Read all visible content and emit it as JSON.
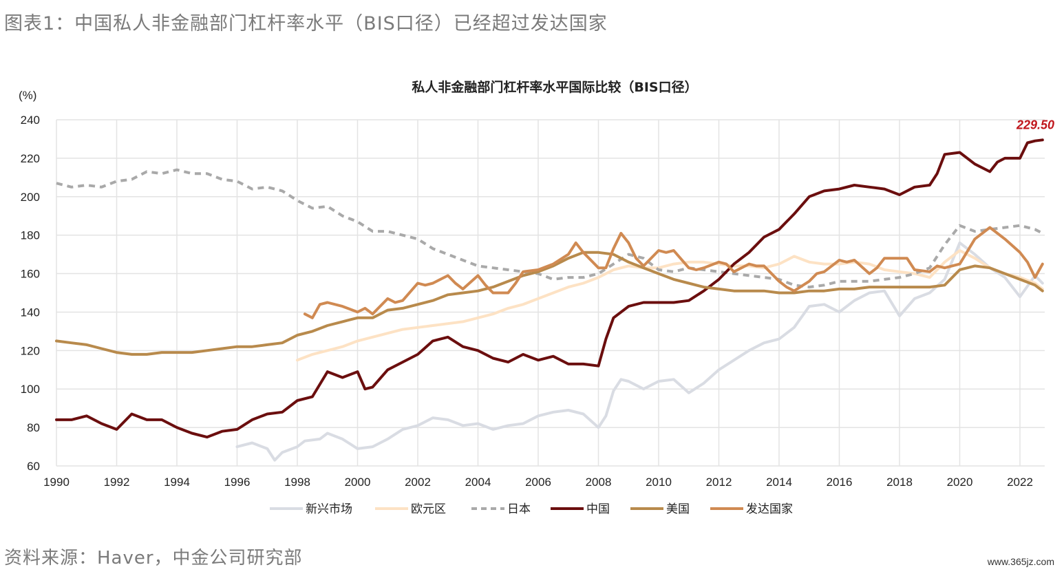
{
  "figure_title": "图表1：中国私人非金融部门杠杆率水平（BIS口径）已经超过发达国家",
  "source": "资料来源：Haver，中金公司研究部",
  "watermark": "www.365jz.com",
  "chart_data": {
    "type": "line",
    "title": "私人非金融部门杠杆率水平国际比较（BIS口径）",
    "ylabel": "(%)",
    "xlabel": "",
    "ylim": [
      60,
      240
    ],
    "xlim": [
      1990,
      2022.8
    ],
    "grid": true,
    "yticks": [
      60,
      80,
      100,
      120,
      140,
      160,
      180,
      200,
      220,
      240
    ],
    "xticks": [
      1990,
      1992,
      1994,
      1996,
      1998,
      2000,
      2002,
      2004,
      2006,
      2008,
      2010,
      2012,
      2014,
      2016,
      2018,
      2020,
      2022
    ],
    "legend_position": "bottom",
    "annotation": {
      "text": "229.50",
      "x": 2022.75,
      "y": 229.5,
      "color": "#c0161c"
    },
    "series": [
      {
        "name": "新兴市场",
        "color": "#d9dce3",
        "dash": false,
        "x": [
          1996,
          1996.5,
          1997,
          1997.25,
          1997.5,
          1998,
          1998.25,
          1998.75,
          1999,
          1999.5,
          2000,
          2000.5,
          2001,
          2001.5,
          2002,
          2002.5,
          2003,
          2003.5,
          2004,
          2004.5,
          2005,
          2005.5,
          2006,
          2006.5,
          2007,
          2007.5,
          2008,
          2008.25,
          2008.5,
          2008.75,
          2009,
          2009.5,
          2010,
          2010.5,
          2011,
          2011.5,
          2012,
          2012.5,
          2013,
          2013.5,
          2014,
          2014.5,
          2015,
          2015.5,
          2016,
          2016.5,
          2017,
          2017.5,
          2018,
          2018.5,
          2019,
          2019.5,
          2020,
          2020.5,
          2021,
          2021.5,
          2022,
          2022.5,
          2022.75
        ],
        "values": [
          70,
          72,
          69,
          63,
          67,
          70,
          73,
          74,
          77,
          74,
          69,
          70,
          74,
          79,
          81,
          85,
          84,
          81,
          82,
          79,
          81,
          82,
          86,
          88,
          89,
          87,
          80,
          86,
          99,
          105,
          104,
          100,
          104,
          105,
          98,
          103,
          110,
          115,
          120,
          124,
          126,
          132,
          143,
          144,
          140,
          146,
          150,
          151,
          138,
          147,
          150,
          157,
          176,
          170,
          163,
          158,
          148,
          159,
          155
        ]
      },
      {
        "name": "欧元区",
        "color": "#fde2c4",
        "dash": false,
        "x": [
          1998,
          1998.5,
          1999,
          1999.5,
          2000,
          2000.5,
          2001,
          2001.5,
          2002,
          2002.5,
          2003,
          2003.5,
          2004,
          2004.5,
          2005,
          2005.5,
          2006,
          2006.5,
          2007,
          2007.5,
          2008,
          2008.5,
          2009,
          2009.5,
          2010,
          2010.5,
          2011,
          2011.5,
          2012,
          2012.5,
          2013,
          2013.5,
          2014,
          2014.5,
          2015,
          2015.5,
          2016,
          2016.5,
          2017,
          2017.5,
          2018,
          2018.5,
          2019,
          2019.5,
          2020,
          2020.5,
          2021,
          2021.5,
          2022,
          2022.5,
          2022.75
        ],
        "values": [
          115,
          118,
          120,
          122,
          125,
          127,
          129,
          131,
          132,
          133,
          134,
          135,
          137,
          139,
          142,
          144,
          147,
          150,
          153,
          155,
          158,
          162,
          164,
          163,
          163,
          165,
          166,
          166,
          165,
          164,
          164,
          163,
          165,
          169,
          166,
          165,
          165,
          166,
          165,
          162,
          161,
          160,
          158,
          166,
          172,
          168,
          163,
          160,
          158,
          155,
          152
        ]
      },
      {
        "name": "日本",
        "color": "#a9a9a9",
        "dash": true,
        "x": [
          1990,
          1990.5,
          1991,
          1991.5,
          1992,
          1992.5,
          1993,
          1993.5,
          1994,
          1994.5,
          1995,
          1995.5,
          1996,
          1996.5,
          1997,
          1997.5,
          1998,
          1998.5,
          1999,
          1999.5,
          2000,
          2000.5,
          2001,
          2001.5,
          2002,
          2002.5,
          2003,
          2003.5,
          2004,
          2004.5,
          2005,
          2005.5,
          2006,
          2006.5,
          2007,
          2007.5,
          2008,
          2008.5,
          2009,
          2009.5,
          2010,
          2010.5,
          2011,
          2011.5,
          2012,
          2012.5,
          2013,
          2013.5,
          2014,
          2014.5,
          2015,
          2015.5,
          2016,
          2016.5,
          2017,
          2017.5,
          2018,
          2018.5,
          2019,
          2019.5,
          2020,
          2020.5,
          2021,
          2021.5,
          2022,
          2022.5,
          2022.75
        ],
        "values": [
          207,
          205,
          206,
          205,
          208,
          209,
          213,
          212,
          214,
          212,
          212,
          209,
          208,
          204,
          205,
          203,
          198,
          194,
          195,
          190,
          187,
          182,
          182,
          180,
          178,
          173,
          170,
          167,
          164,
          163,
          162,
          161,
          160,
          157,
          158,
          158,
          160,
          165,
          170,
          168,
          162,
          161,
          163,
          162,
          161,
          160,
          159,
          158,
          157,
          154,
          153,
          154,
          156,
          156,
          156,
          157,
          158,
          160,
          163,
          175,
          185,
          182,
          183,
          184,
          185,
          183,
          181
        ]
      },
      {
        "name": "中国",
        "color": "#6b0e0e",
        "dash": false,
        "x": [
          1990,
          1990.5,
          1991,
          1991.5,
          1992,
          1992.5,
          1993,
          1993.5,
          1994,
          1994.5,
          1995,
          1995.5,
          1996,
          1996.5,
          1997,
          1997.5,
          1998,
          1998.5,
          1999,
          1999.5,
          2000,
          2000.25,
          2000.5,
          2001,
          2001.5,
          2002,
          2002.5,
          2003,
          2003.5,
          2004,
          2004.5,
          2005,
          2005.5,
          2006,
          2006.5,
          2007,
          2007.5,
          2008,
          2008.25,
          2008.5,
          2009,
          2009.5,
          2010,
          2010.5,
          2011,
          2011.5,
          2012,
          2012.5,
          2013,
          2013.5,
          2014,
          2014.5,
          2015,
          2015.5,
          2016,
          2016.5,
          2017,
          2017.5,
          2018,
          2018.5,
          2019,
          2019.25,
          2019.5,
          2020,
          2020.5,
          2021,
          2021.25,
          2021.5,
          2022,
          2022.25,
          2022.5,
          2022.75
        ],
        "values": [
          84,
          84,
          86,
          82,
          79,
          87,
          84,
          84,
          80,
          77,
          75,
          78,
          79,
          84,
          87,
          88,
          94,
          96,
          109,
          106,
          109,
          100,
          101,
          110,
          114,
          118,
          125,
          127,
          122,
          120,
          116,
          114,
          118,
          115,
          117,
          113,
          113,
          112,
          126,
          137,
          143,
          145,
          145,
          145,
          146,
          151,
          157,
          165,
          171,
          179,
          183,
          191,
          200,
          203,
          204,
          206,
          205,
          204,
          201,
          205,
          206,
          212,
          222,
          223,
          217,
          213,
          218,
          220,
          220,
          228,
          229,
          229.5
        ]
      },
      {
        "name": "美国",
        "color": "#b88a4c",
        "dash": false,
        "x": [
          1990,
          1990.5,
          1991,
          1991.5,
          1992,
          1992.5,
          1993,
          1993.5,
          1994,
          1994.5,
          1995,
          1995.5,
          1996,
          1996.5,
          1997,
          1997.5,
          1998,
          1998.5,
          1999,
          1999.5,
          2000,
          2000.5,
          2001,
          2001.5,
          2002,
          2002.5,
          2003,
          2003.5,
          2004,
          2004.5,
          2005,
          2005.5,
          2006,
          2006.5,
          2007,
          2007.5,
          2008,
          2008.5,
          2009,
          2009.5,
          2010,
          2010.5,
          2011,
          2011.5,
          2012,
          2012.5,
          2013,
          2013.5,
          2014,
          2014.5,
          2015,
          2015.5,
          2016,
          2016.5,
          2017,
          2017.5,
          2018,
          2018.5,
          2019,
          2019.5,
          2020,
          2020.5,
          2021,
          2021.5,
          2022,
          2022.5,
          2022.75
        ],
        "values": [
          125,
          124,
          123,
          121,
          119,
          118,
          118,
          119,
          119,
          119,
          120,
          121,
          122,
          122,
          123,
          124,
          128,
          130,
          133,
          135,
          137,
          137,
          141,
          142,
          144,
          146,
          149,
          150,
          151,
          153,
          156,
          159,
          161,
          164,
          168,
          171,
          171,
          170,
          166,
          163,
          160,
          157,
          155,
          153,
          152,
          151,
          151,
          151,
          150,
          150,
          151,
          151,
          152,
          152,
          153,
          153,
          153,
          153,
          153,
          154,
          162,
          164,
          163,
          160,
          157,
          154,
          151
        ]
      },
      {
        "name": "发达国家",
        "color": "#d08a52",
        "dash": false,
        "x": [
          1998.25,
          1998.5,
          1998.75,
          1999,
          1999.5,
          2000,
          2000.25,
          2000.5,
          2001,
          2001.25,
          2001.5,
          2002,
          2002.25,
          2002.5,
          2003,
          2003.25,
          2003.5,
          2004,
          2004.25,
          2004.5,
          2005,
          2005.25,
          2005.5,
          2006,
          2006.5,
          2007,
          2007.25,
          2007.5,
          2008,
          2008.25,
          2008.5,
          2008.75,
          2009,
          2009.25,
          2009.5,
          2010,
          2010.25,
          2010.5,
          2011,
          2011.25,
          2011.5,
          2012,
          2012.25,
          2012.5,
          2013,
          2013.25,
          2013.5,
          2014,
          2014.25,
          2014.5,
          2015,
          2015.25,
          2015.5,
          2016,
          2016.25,
          2016.5,
          2017,
          2017.25,
          2017.5,
          2018,
          2018.25,
          2018.5,
          2019,
          2019.25,
          2019.5,
          2020,
          2020.5,
          2021,
          2021.5,
          2022,
          2022.25,
          2022.5,
          2022.75
        ],
        "values": [
          139,
          137,
          144,
          145,
          143,
          140,
          142,
          139,
          147,
          145,
          146,
          155,
          154,
          155,
          159,
          155,
          152,
          159,
          154,
          150,
          150,
          155,
          161,
          162,
          165,
          170,
          176,
          171,
          163,
          163,
          173,
          181,
          176,
          168,
          164,
          172,
          171,
          172,
          163,
          162,
          163,
          166,
          165,
          161,
          165,
          164,
          164,
          156,
          153,
          151,
          156,
          160,
          161,
          167,
          166,
          167,
          160,
          163,
          168,
          168,
          168,
          162,
          161,
          164,
          163,
          165,
          178,
          184,
          178,
          171,
          166,
          158,
          165
        ]
      }
    ]
  }
}
